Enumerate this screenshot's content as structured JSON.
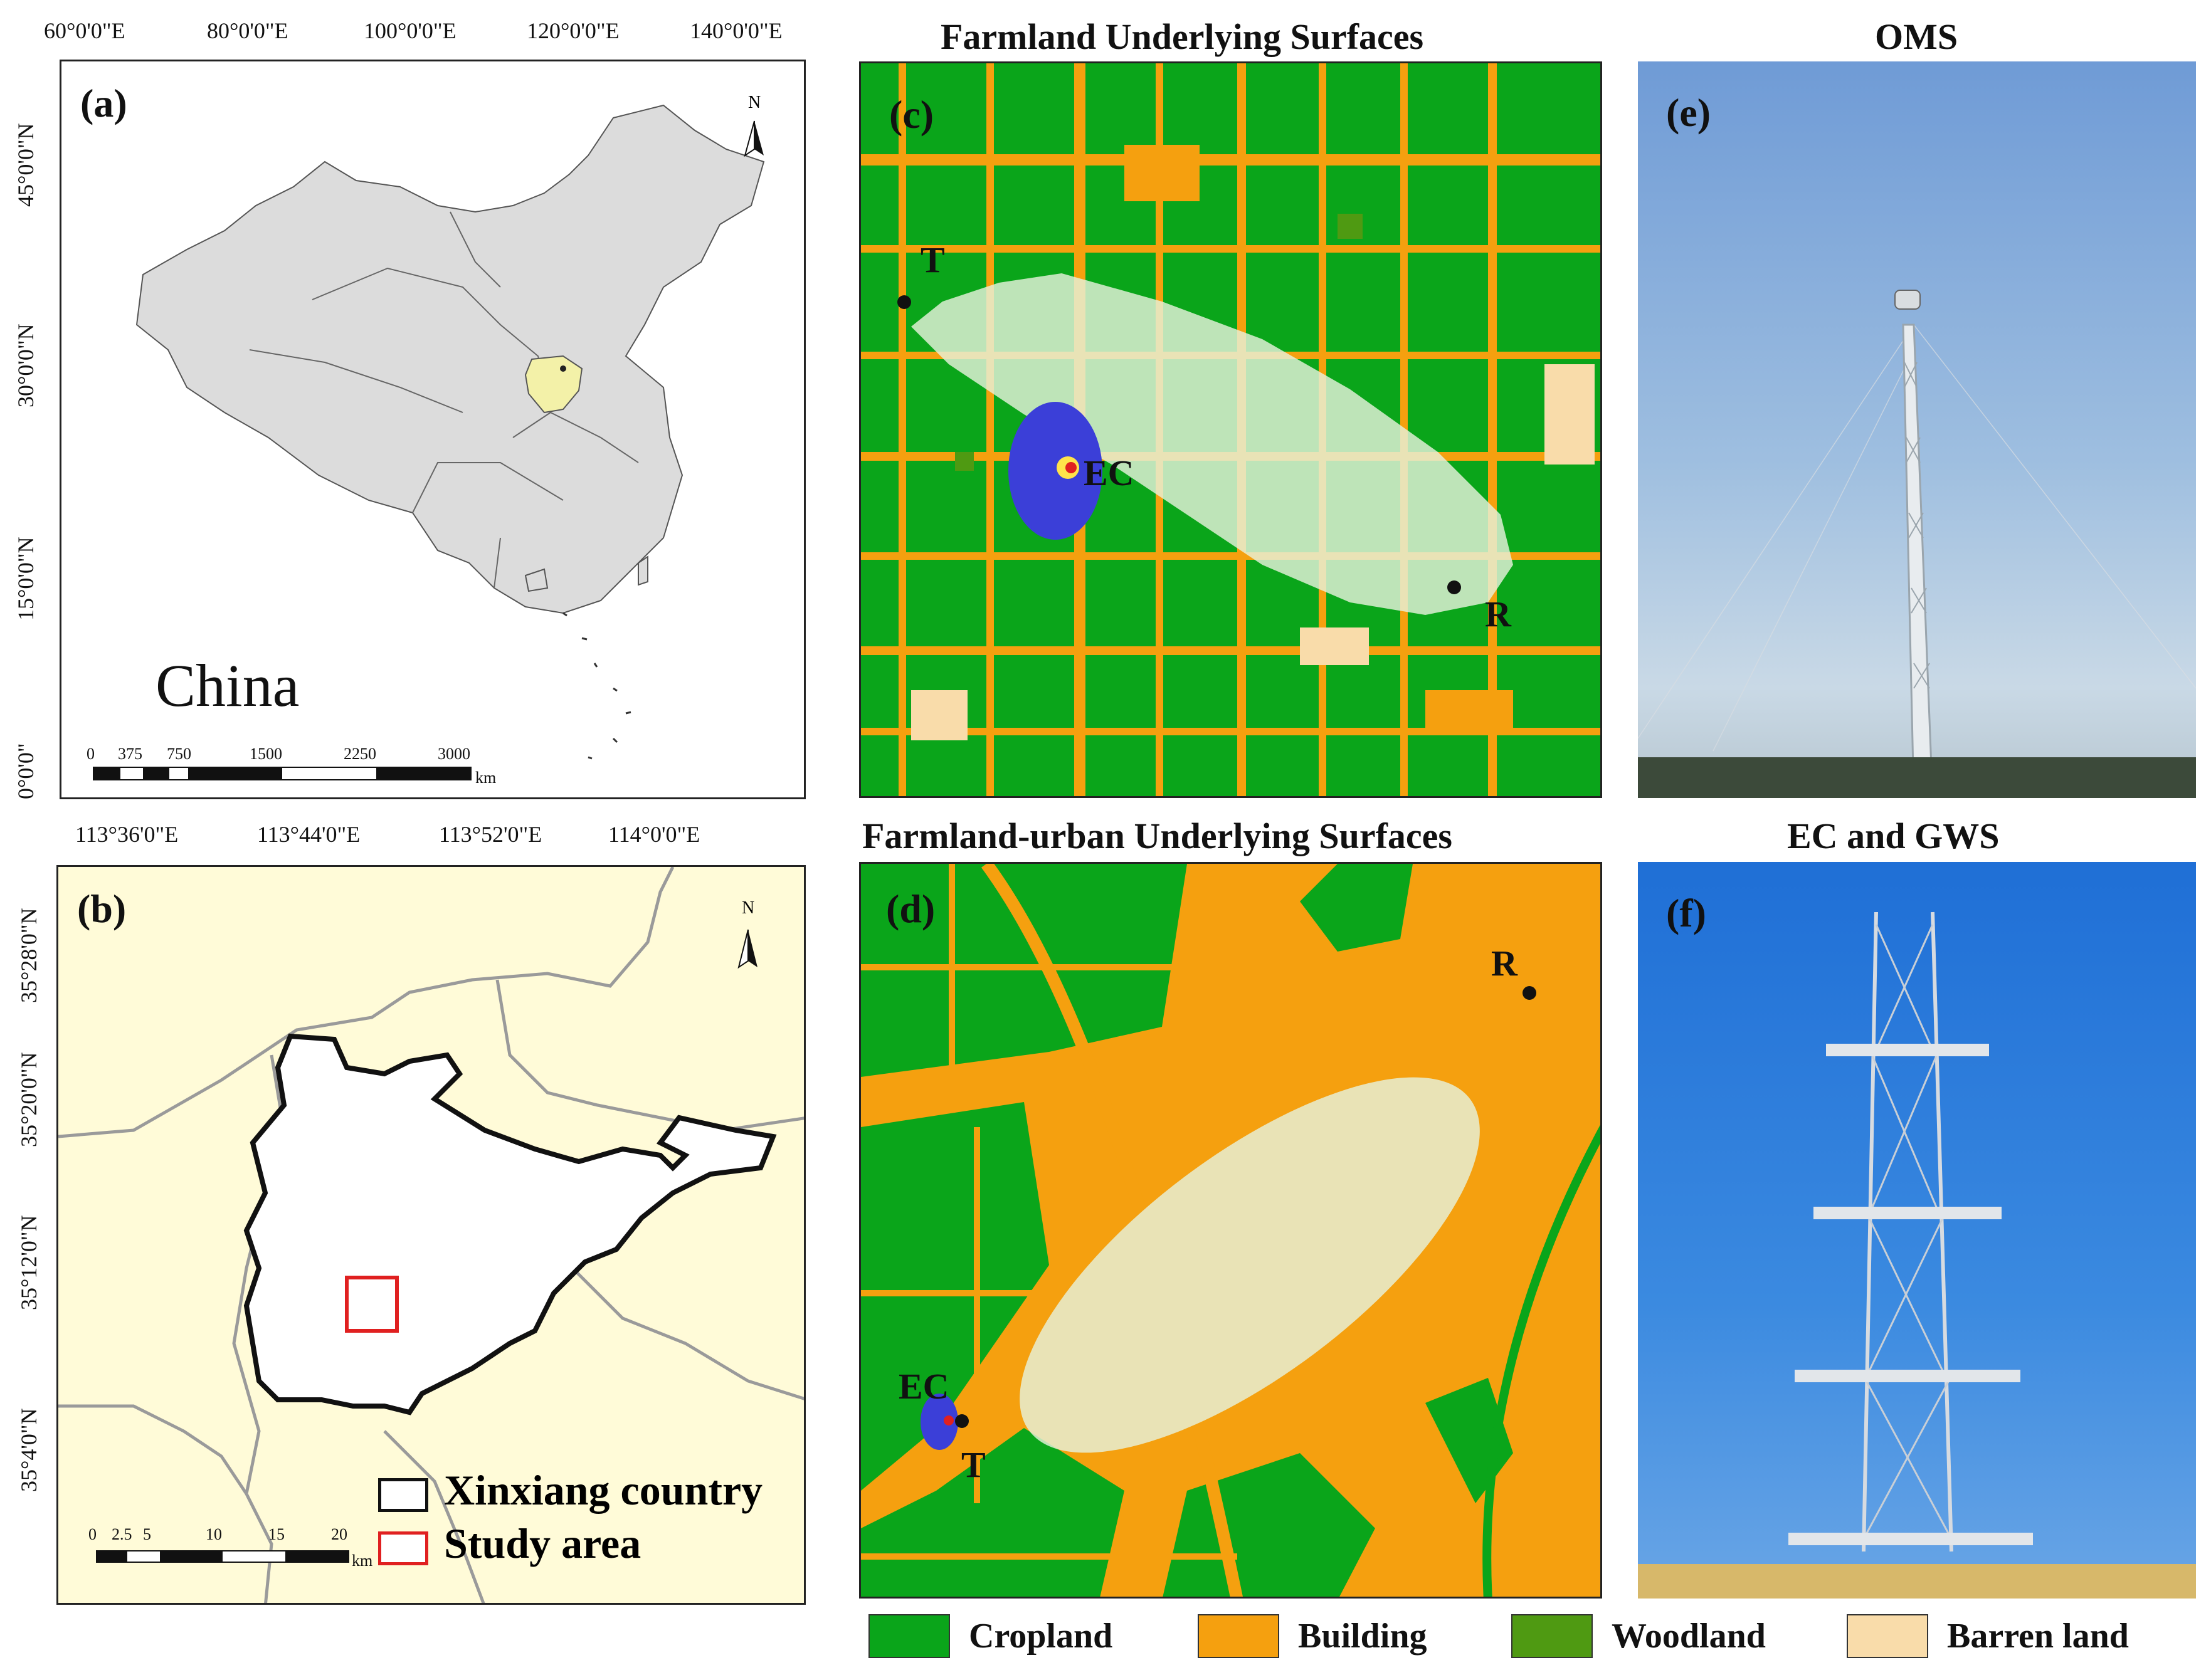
{
  "panel_a": {
    "label": "(a)",
    "country": "China",
    "lon_ticks": [
      "60°0'0\"E",
      "80°0'0\"E",
      "100°0'0\"E",
      "120°0'0\"E",
      "140°0'0\"E"
    ],
    "lat_ticks": [
      "45°0'0\"N",
      "30°0'0\"N",
      "15°0'0\"N",
      "0°0'0\""
    ],
    "scale": [
      "0",
      "375",
      "750",
      "1500",
      "2250",
      "3000",
      "km"
    ],
    "north": "N"
  },
  "panel_b": {
    "label": "(b)",
    "lon_ticks": [
      "113°36'0\"E",
      "113°44'0\"E",
      "113°52'0\"E",
      "114°0'0\"E"
    ],
    "lat_ticks": [
      "35°28'0\"N",
      "35°20'0\"N",
      "35°12'0\"N",
      "35°4'0\"N"
    ],
    "scale": [
      "0",
      "2.5",
      "5",
      "10",
      "15",
      "20",
      "km"
    ],
    "north": "N",
    "legend": [
      "Xinxiang country",
      "Study area"
    ]
  },
  "panel_c": {
    "title": "Farmland Underlying Surfaces",
    "label": "(c)",
    "points": [
      "T",
      "EC",
      "R"
    ]
  },
  "panel_d": {
    "title": "Farmland-urban Underlying Surfaces",
    "label": "(d)",
    "points": [
      "R",
      "EC",
      "T"
    ]
  },
  "panel_e": {
    "title": "OMS",
    "label": "(e)"
  },
  "panel_f": {
    "title": "EC and GWS",
    "label": "(f)"
  },
  "legend": [
    {
      "label": "Cropland",
      "color": "#0aa51a"
    },
    {
      "label": "Building",
      "color": "#f5a00f"
    },
    {
      "label": "Woodland",
      "color": "#4f9a12"
    },
    {
      "label": "Barren land",
      "color": "#f9dcaa"
    }
  ]
}
